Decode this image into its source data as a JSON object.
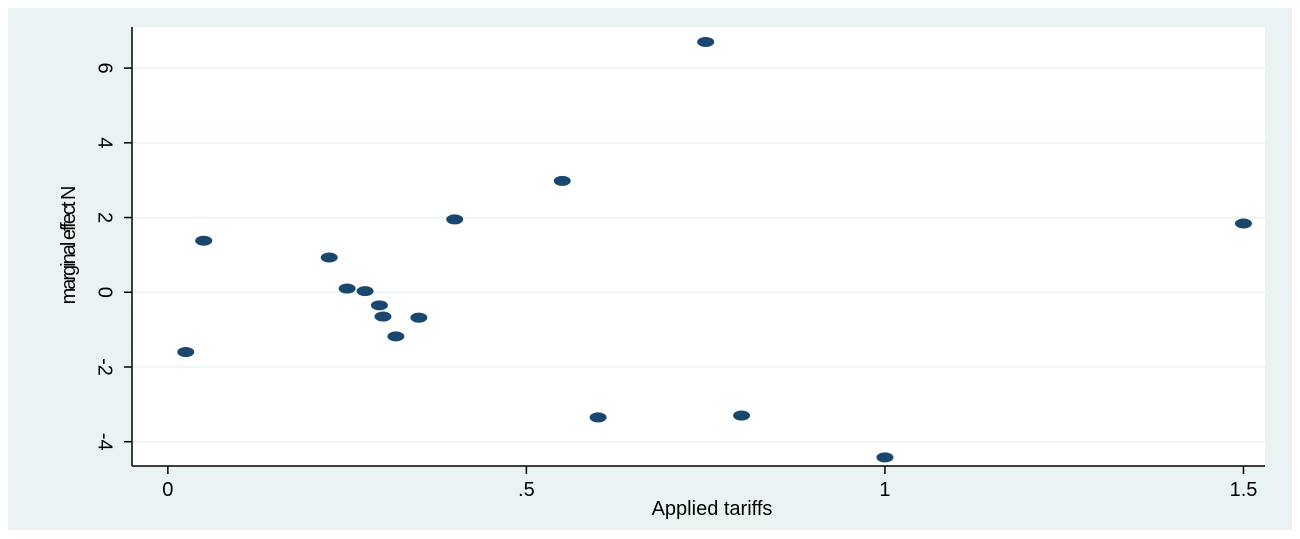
{
  "chart_data": {
    "type": "scatter",
    "title": "",
    "xlabel": "Applied tariffs",
    "ylabel": "marginal effect N",
    "xlim": [
      -0.05,
      1.53
    ],
    "ylim": [
      -4.65,
      7.1
    ],
    "x_ticks": [
      {
        "value": 0,
        "label": "0"
      },
      {
        "value": 0.5,
        "label": ".5"
      },
      {
        "value": 1,
        "label": "1"
      },
      {
        "value": 1.5,
        "label": "1.5"
      }
    ],
    "y_ticks": [
      {
        "value": -4,
        "label": "-4"
      },
      {
        "value": -2,
        "label": "-2"
      },
      {
        "value": 0,
        "label": "0"
      },
      {
        "value": 2,
        "label": "2"
      },
      {
        "value": 4,
        "label": "4"
      },
      {
        "value": 6,
        "label": "6"
      }
    ],
    "grid": true,
    "marker_color": "#1a476f",
    "background_color": "#eaf2f3",
    "plot_background_color": "#ffffff",
    "points": [
      {
        "x": 0.025,
        "y": -1.6
      },
      {
        "x": 0.05,
        "y": 1.38
      },
      {
        "x": 0.225,
        "y": 0.93
      },
      {
        "x": 0.25,
        "y": 0.1
      },
      {
        "x": 0.275,
        "y": 0.03
      },
      {
        "x": 0.295,
        "y": -0.35
      },
      {
        "x": 0.3,
        "y": -0.65
      },
      {
        "x": 0.318,
        "y": -1.18
      },
      {
        "x": 0.35,
        "y": -0.68
      },
      {
        "x": 0.4,
        "y": 1.95
      },
      {
        "x": 0.55,
        "y": 2.98
      },
      {
        "x": 0.6,
        "y": -3.35
      },
      {
        "x": 0.75,
        "y": 6.7
      },
      {
        "x": 0.8,
        "y": -3.3
      },
      {
        "x": 1.0,
        "y": -4.42
      },
      {
        "x": 1.5,
        "y": 1.84
      }
    ]
  }
}
